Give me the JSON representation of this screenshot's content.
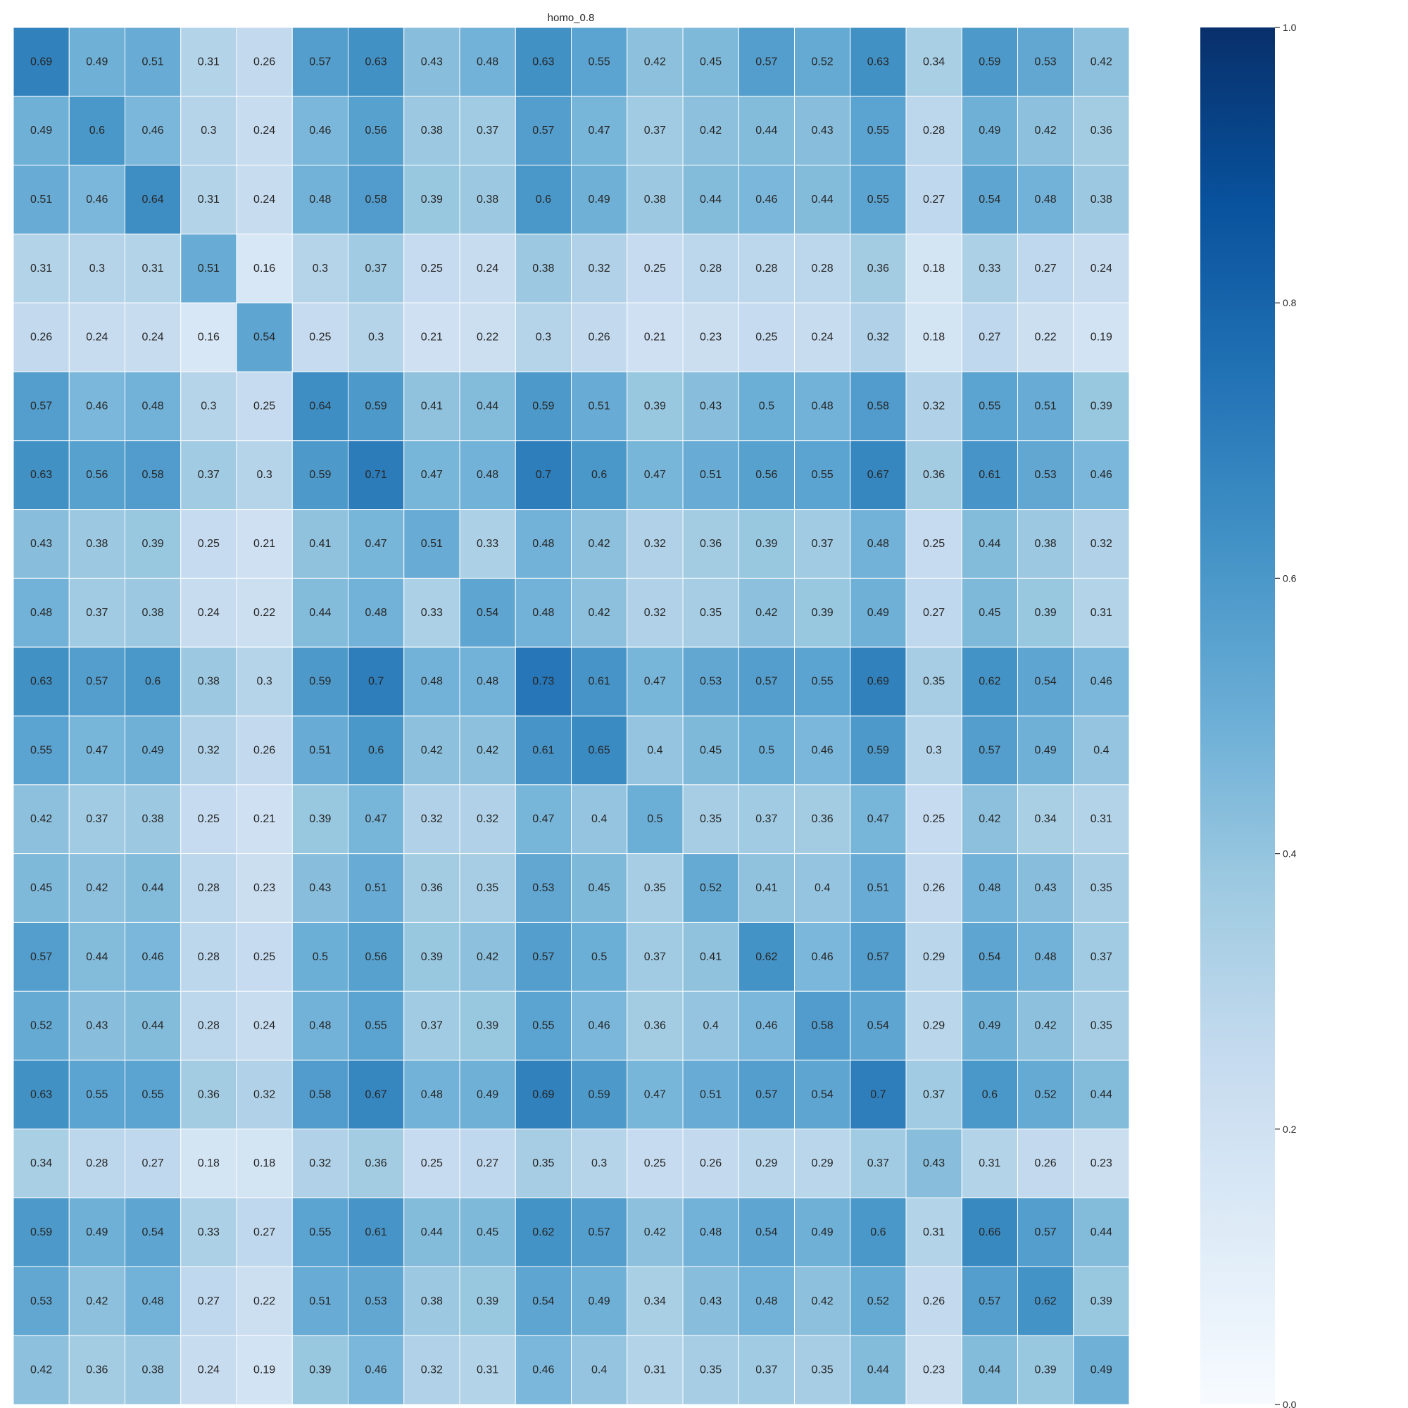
{
  "chart_data": {
    "type": "heatmap",
    "title": "homo_0.8",
    "xlabel": "",
    "ylabel": "",
    "colormap": "Blues",
    "colors": {
      "low": "#f7fbff",
      "high": "#08306b",
      "text_dark": "#262626",
      "text_light": "#ffffff",
      "cell_border": "#ffffff"
    },
    "vmin": 0.0,
    "vmax": 1.0,
    "colorbar_ticks": [
      "0.0",
      "0.2",
      "0.4",
      "0.6",
      "0.8",
      "1.0"
    ],
    "annotations": true,
    "values": [
      [
        0.69,
        0.49,
        0.51,
        0.31,
        0.26,
        0.57,
        0.63,
        0.43,
        0.48,
        0.63,
        0.55,
        0.42,
        0.45,
        0.57,
        0.52,
        0.63,
        0.34,
        0.59,
        0.53,
        0.42
      ],
      [
        0.49,
        0.6,
        0.46,
        0.3,
        0.24,
        0.46,
        0.56,
        0.38,
        0.37,
        0.57,
        0.47,
        0.37,
        0.42,
        0.44,
        0.43,
        0.55,
        0.28,
        0.49,
        0.42,
        0.36
      ],
      [
        0.51,
        0.46,
        0.64,
        0.31,
        0.24,
        0.48,
        0.58,
        0.39,
        0.38,
        0.6,
        0.49,
        0.38,
        0.44,
        0.46,
        0.44,
        0.55,
        0.27,
        0.54,
        0.48,
        0.38
      ],
      [
        0.31,
        0.3,
        0.31,
        0.51,
        0.16,
        0.3,
        0.37,
        0.25,
        0.24,
        0.38,
        0.32,
        0.25,
        0.28,
        0.28,
        0.28,
        0.36,
        0.18,
        0.33,
        0.27,
        0.24
      ],
      [
        0.26,
        0.24,
        0.24,
        0.16,
        0.54,
        0.25,
        0.3,
        0.21,
        0.22,
        0.3,
        0.26,
        0.21,
        0.23,
        0.25,
        0.24,
        0.32,
        0.18,
        0.27,
        0.22,
        0.19
      ],
      [
        0.57,
        0.46,
        0.48,
        0.3,
        0.25,
        0.64,
        0.59,
        0.41,
        0.44,
        0.59,
        0.51,
        0.39,
        0.43,
        0.5,
        0.48,
        0.58,
        0.32,
        0.55,
        0.51,
        0.39
      ],
      [
        0.63,
        0.56,
        0.58,
        0.37,
        0.3,
        0.59,
        0.71,
        0.47,
        0.48,
        0.7,
        0.6,
        0.47,
        0.51,
        0.56,
        0.55,
        0.67,
        0.36,
        0.61,
        0.53,
        0.46
      ],
      [
        0.43,
        0.38,
        0.39,
        0.25,
        0.21,
        0.41,
        0.47,
        0.51,
        0.33,
        0.48,
        0.42,
        0.32,
        0.36,
        0.39,
        0.37,
        0.48,
        0.25,
        0.44,
        0.38,
        0.32
      ],
      [
        0.48,
        0.37,
        0.38,
        0.24,
        0.22,
        0.44,
        0.48,
        0.33,
        0.54,
        0.48,
        0.42,
        0.32,
        0.35,
        0.42,
        0.39,
        0.49,
        0.27,
        0.45,
        0.39,
        0.31
      ],
      [
        0.63,
        0.57,
        0.6,
        0.38,
        0.3,
        0.59,
        0.7,
        0.48,
        0.48,
        0.73,
        0.61,
        0.47,
        0.53,
        0.57,
        0.55,
        0.69,
        0.35,
        0.62,
        0.54,
        0.46
      ],
      [
        0.55,
        0.47,
        0.49,
        0.32,
        0.26,
        0.51,
        0.6,
        0.42,
        0.42,
        0.61,
        0.65,
        0.4,
        0.45,
        0.5,
        0.46,
        0.59,
        0.3,
        0.57,
        0.49,
        0.4
      ],
      [
        0.42,
        0.37,
        0.38,
        0.25,
        0.21,
        0.39,
        0.47,
        0.32,
        0.32,
        0.47,
        0.4,
        0.5,
        0.35,
        0.37,
        0.36,
        0.47,
        0.25,
        0.42,
        0.34,
        0.31
      ],
      [
        0.45,
        0.42,
        0.44,
        0.28,
        0.23,
        0.43,
        0.51,
        0.36,
        0.35,
        0.53,
        0.45,
        0.35,
        0.52,
        0.41,
        0.4,
        0.51,
        0.26,
        0.48,
        0.43,
        0.35
      ],
      [
        0.57,
        0.44,
        0.46,
        0.28,
        0.25,
        0.5,
        0.56,
        0.39,
        0.42,
        0.57,
        0.5,
        0.37,
        0.41,
        0.62,
        0.46,
        0.57,
        0.29,
        0.54,
        0.48,
        0.37
      ],
      [
        0.52,
        0.43,
        0.44,
        0.28,
        0.24,
        0.48,
        0.55,
        0.37,
        0.39,
        0.55,
        0.46,
        0.36,
        0.4,
        0.46,
        0.58,
        0.54,
        0.29,
        0.49,
        0.42,
        0.35
      ],
      [
        0.63,
        0.55,
        0.55,
        0.36,
        0.32,
        0.58,
        0.67,
        0.48,
        0.49,
        0.69,
        0.59,
        0.47,
        0.51,
        0.57,
        0.54,
        0.7,
        0.37,
        0.6,
        0.52,
        0.44
      ],
      [
        0.34,
        0.28,
        0.27,
        0.18,
        0.18,
        0.32,
        0.36,
        0.25,
        0.27,
        0.35,
        0.3,
        0.25,
        0.26,
        0.29,
        0.29,
        0.37,
        0.43,
        0.31,
        0.26,
        0.23
      ],
      [
        0.59,
        0.49,
        0.54,
        0.33,
        0.27,
        0.55,
        0.61,
        0.44,
        0.45,
        0.62,
        0.57,
        0.42,
        0.48,
        0.54,
        0.49,
        0.6,
        0.31,
        0.66,
        0.57,
        0.44
      ],
      [
        0.53,
        0.42,
        0.48,
        0.27,
        0.22,
        0.51,
        0.53,
        0.38,
        0.39,
        0.54,
        0.49,
        0.34,
        0.43,
        0.48,
        0.42,
        0.52,
        0.26,
        0.57,
        0.62,
        0.39
      ],
      [
        0.42,
        0.36,
        0.38,
        0.24,
        0.19,
        0.39,
        0.46,
        0.32,
        0.31,
        0.46,
        0.4,
        0.31,
        0.35,
        0.37,
        0.35,
        0.44,
        0.23,
        0.44,
        0.39,
        0.49
      ]
    ]
  }
}
